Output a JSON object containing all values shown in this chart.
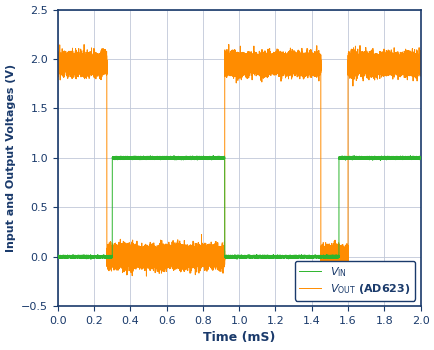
{
  "title": "",
  "xlabel": "Time (mS)",
  "ylabel": "Input and Output Voltages (V)",
  "xlim": [
    0,
    2.0
  ],
  "ylim": [
    -0.5,
    2.5
  ],
  "xticks": [
    0,
    0.2,
    0.4,
    0.6,
    0.8,
    1.0,
    1.2,
    1.4,
    1.6,
    1.8,
    2.0
  ],
  "yticks": [
    -0.5,
    0.0,
    0.5,
    1.0,
    1.5,
    2.0,
    2.5
  ],
  "vout_color": "#FF8C00",
  "vin_color": "#2db52d",
  "background_color": "#FFFFFF",
  "grid_color": "#C0C8D8",
  "legend_vin": "$V_{\\mathrm{IN}}$",
  "legend_vout": "$V_{\\mathrm{OUT}}$ (AD623)",
  "noise_amplitude_vout": 0.05,
  "noise_amplitude_vin": 0.006,
  "vin_high": 1.0,
  "vin_low": 0.0,
  "vout_high": 1.95,
  "vout_low": 0.0,
  "vin_transitions": [
    0.3,
    0.92,
    1.55
  ],
  "vout_transitions": [
    0.27,
    0.92,
    1.45,
    1.6
  ],
  "vin_initial": 0,
  "vout_initial": 1,
  "ylabel_color": "#1a3a6b",
  "xlabel_color": "#1a3a6b",
  "tick_color": "#1a3a6b",
  "spine_color": "#1a3a6b",
  "legend_fontsize": 8,
  "xlabel_fontsize": 9,
  "ylabel_fontsize": 8,
  "tick_fontsize": 8
}
